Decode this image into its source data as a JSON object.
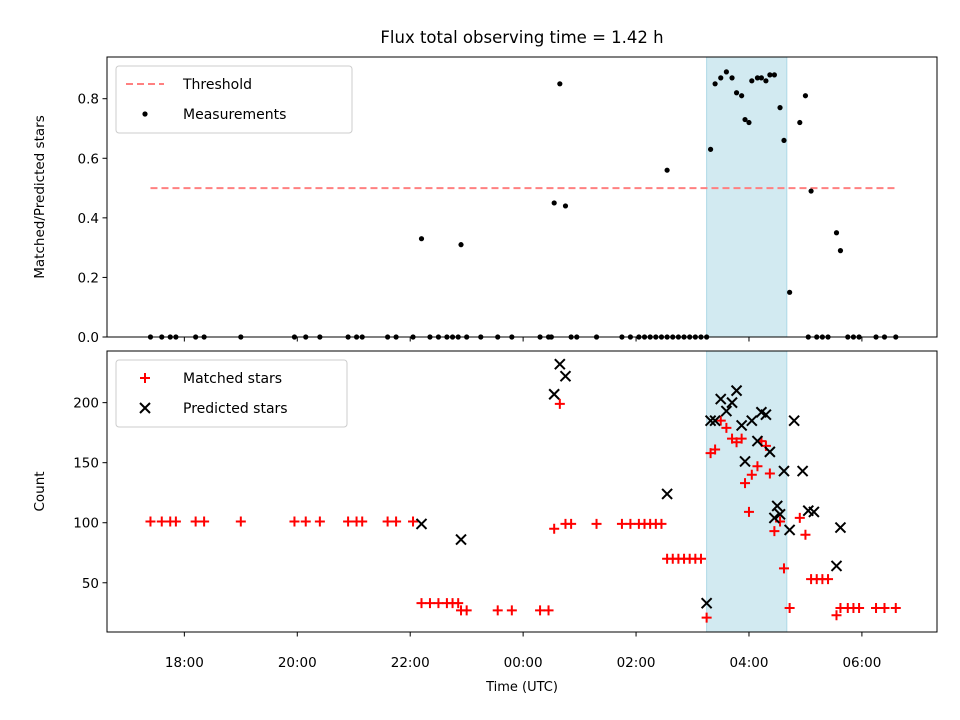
{
  "chart_data": {
    "title": "Flux total observing time = 1.42 h",
    "xlabel": "Time (UTC)",
    "x_ticks": [
      "18:00",
      "20:00",
      "22:00",
      "00:00",
      "02:00",
      "04:00",
      "06:00"
    ],
    "x_tick_hours": [
      18,
      20,
      22,
      24,
      26,
      28,
      30
    ],
    "xlim_hours": [
      16.63,
      31.33
    ],
    "highlight_span_hours": [
      27.25,
      28.67
    ],
    "colors": {
      "threshold": "#ff8080",
      "measurement": "#000000",
      "matched": "#ff0000",
      "predicted": "#000000",
      "highlight": "#add8e6"
    },
    "panels": [
      {
        "type": "scatter",
        "ylabel": "Matched/Predicted stars",
        "ylim": [
          0,
          0.94
        ],
        "y_ticks": [
          0.0,
          0.2,
          0.4,
          0.6,
          0.8
        ],
        "y_tick_labels": [
          "0.0",
          "0.2",
          "0.4",
          "0.6",
          "0.8"
        ],
        "legend_position": "upper-left",
        "threshold": {
          "name": "Threshold",
          "y": 0.5,
          "x_range": [
            17.4,
            30.6
          ]
        },
        "series": [
          {
            "name": "Measurements",
            "marker": "dot",
            "points": [
              [
                17.4,
                0
              ],
              [
                17.6,
                0
              ],
              [
                17.75,
                0
              ],
              [
                17.85,
                0
              ],
              [
                18.2,
                0
              ],
              [
                18.35,
                0
              ],
              [
                19.0,
                0
              ],
              [
                19.95,
                0
              ],
              [
                20.15,
                0
              ],
              [
                20.4,
                0
              ],
              [
                20.9,
                0
              ],
              [
                21.05,
                0
              ],
              [
                21.15,
                0
              ],
              [
                21.6,
                0
              ],
              [
                21.75,
                0
              ],
              [
                22.05,
                0
              ],
              [
                22.2,
                0.33
              ],
              [
                22.35,
                0
              ],
              [
                22.5,
                0
              ],
              [
                22.65,
                0
              ],
              [
                22.75,
                0
              ],
              [
                22.85,
                0
              ],
              [
                22.9,
                0.31
              ],
              [
                23.0,
                0
              ],
              [
                23.25,
                0
              ],
              [
                23.55,
                0
              ],
              [
                23.8,
                0
              ],
              [
                24.3,
                0
              ],
              [
                24.45,
                0
              ],
              [
                24.5,
                0
              ],
              [
                24.55,
                0.45
              ],
              [
                24.65,
                0.85
              ],
              [
                24.75,
                0.44
              ],
              [
                24.85,
                0
              ],
              [
                24.95,
                0
              ],
              [
                25.3,
                0
              ],
              [
                25.75,
                0
              ],
              [
                25.9,
                0
              ],
              [
                26.05,
                0
              ],
              [
                26.15,
                0
              ],
              [
                26.25,
                0
              ],
              [
                26.35,
                0
              ],
              [
                26.45,
                0
              ],
              [
                26.55,
                0
              ],
              [
                26.55,
                0.56
              ],
              [
                26.65,
                0
              ],
              [
                26.75,
                0
              ],
              [
                26.85,
                0
              ],
              [
                26.95,
                0
              ],
              [
                27.05,
                0
              ],
              [
                27.15,
                0
              ],
              [
                27.25,
                0
              ],
              [
                27.32,
                0.63
              ],
              [
                27.4,
                0.85
              ],
              [
                27.5,
                0.87
              ],
              [
                27.6,
                0.89
              ],
              [
                27.7,
                0.87
              ],
              [
                27.78,
                0.82
              ],
              [
                27.87,
                0.81
              ],
              [
                27.93,
                0.73
              ],
              [
                28.0,
                0.72
              ],
              [
                28.05,
                0.86
              ],
              [
                28.15,
                0.87
              ],
              [
                28.22,
                0.87
              ],
              [
                28.3,
                0.86
              ],
              [
                28.37,
                0.88
              ],
              [
                28.45,
                0.88
              ],
              [
                28.55,
                0.77
              ],
              [
                28.62,
                0.66
              ],
              [
                28.72,
                0.15
              ],
              [
                28.9,
                0.72
              ],
              [
                29.0,
                0.81
              ],
              [
                29.05,
                0
              ],
              [
                29.1,
                0.49
              ],
              [
                29.2,
                0
              ],
              [
                29.3,
                0
              ],
              [
                29.4,
                0
              ],
              [
                29.55,
                0.35
              ],
              [
                29.62,
                0.29
              ],
              [
                29.75,
                0
              ],
              [
                29.85,
                0
              ],
              [
                29.95,
                0
              ],
              [
                30.25,
                0
              ],
              [
                30.4,
                0
              ],
              [
                30.6,
                0
              ]
            ]
          }
        ]
      },
      {
        "type": "scatter",
        "ylabel": "Count",
        "ylim": [
          9,
          243
        ],
        "y_ticks": [
          50,
          100,
          150,
          200
        ],
        "y_tick_labels": [
          "50",
          "100",
          "150",
          "200"
        ],
        "legend_position": "upper-left",
        "series": [
          {
            "name": "Matched stars",
            "marker": "plus",
            "points": [
              [
                17.4,
                101
              ],
              [
                17.6,
                101
              ],
              [
                17.75,
                101
              ],
              [
                17.85,
                101
              ],
              [
                18.2,
                101
              ],
              [
                18.35,
                101
              ],
              [
                19.0,
                101
              ],
              [
                19.95,
                101
              ],
              [
                20.15,
                101
              ],
              [
                20.4,
                101
              ],
              [
                20.9,
                101
              ],
              [
                21.05,
                101
              ],
              [
                21.15,
                101
              ],
              [
                21.6,
                101
              ],
              [
                21.75,
                101
              ],
              [
                22.05,
                101
              ],
              [
                22.2,
                33
              ],
              [
                22.35,
                33
              ],
              [
                22.5,
                33
              ],
              [
                22.65,
                33
              ],
              [
                22.75,
                33
              ],
              [
                22.85,
                33
              ],
              [
                22.9,
                27
              ],
              [
                23.0,
                27
              ],
              [
                23.55,
                27
              ],
              [
                23.8,
                27
              ],
              [
                24.3,
                27
              ],
              [
                24.45,
                27
              ],
              [
                24.55,
                95
              ],
              [
                24.65,
                199
              ],
              [
                24.75,
                99
              ],
              [
                24.85,
                99
              ],
              [
                25.3,
                99
              ],
              [
                25.75,
                99
              ],
              [
                25.9,
                99
              ],
              [
                26.05,
                99
              ],
              [
                26.15,
                99
              ],
              [
                26.25,
                99
              ],
              [
                26.35,
                99
              ],
              [
                26.45,
                99
              ],
              [
                26.55,
                70
              ],
              [
                26.65,
                70
              ],
              [
                26.75,
                70
              ],
              [
                26.85,
                70
              ],
              [
                26.95,
                70
              ],
              [
                27.05,
                70
              ],
              [
                27.15,
                70
              ],
              [
                27.25,
                21
              ],
              [
                27.32,
                158
              ],
              [
                27.4,
                161
              ],
              [
                27.5,
                185
              ],
              [
                27.6,
                179
              ],
              [
                27.7,
                170
              ],
              [
                27.78,
                167
              ],
              [
                27.87,
                170
              ],
              [
                27.93,
                133
              ],
              [
                28.0,
                109
              ],
              [
                28.05,
                140
              ],
              [
                28.15,
                147
              ],
              [
                28.22,
                168
              ],
              [
                28.3,
                164
              ],
              [
                28.37,
                141
              ],
              [
                28.45,
                93
              ],
              [
                28.55,
                101
              ],
              [
                28.62,
                62
              ],
              [
                28.72,
                29
              ],
              [
                28.9,
                104
              ],
              [
                29.0,
                90
              ],
              [
                29.1,
                53
              ],
              [
                29.2,
                53
              ],
              [
                29.3,
                53
              ],
              [
                29.4,
                53
              ],
              [
                29.55,
                23
              ],
              [
                29.62,
                29
              ],
              [
                29.75,
                29
              ],
              [
                29.85,
                29
              ],
              [
                29.95,
                29
              ],
              [
                30.25,
                29
              ],
              [
                30.4,
                29
              ],
              [
                30.6,
                29
              ]
            ]
          },
          {
            "name": "Predicted stars",
            "marker": "x",
            "points": [
              [
                22.2,
                99
              ],
              [
                22.9,
                86
              ],
              [
                24.55,
                207
              ],
              [
                24.65,
                232
              ],
              [
                24.75,
                222
              ],
              [
                26.55,
                124
              ],
              [
                27.25,
                33
              ],
              [
                27.32,
                185
              ],
              [
                27.4,
                185
              ],
              [
                27.5,
                203
              ],
              [
                27.6,
                193
              ],
              [
                27.7,
                200
              ],
              [
                27.78,
                210
              ],
              [
                27.87,
                181
              ],
              [
                27.93,
                151
              ],
              [
                28.05,
                185
              ],
              [
                28.15,
                168
              ],
              [
                28.22,
                192
              ],
              [
                28.3,
                190
              ],
              [
                28.37,
                159
              ],
              [
                28.45,
                104
              ],
              [
                28.5,
                114
              ],
              [
                28.55,
                107
              ],
              [
                28.62,
                143
              ],
              [
                28.72,
                94
              ],
              [
                28.8,
                185
              ],
              [
                28.95,
                143
              ],
              [
                29.05,
                110
              ],
              [
                29.15,
                109
              ],
              [
                29.55,
                64
              ],
              [
                29.62,
                96
              ]
            ]
          }
        ]
      }
    ]
  }
}
